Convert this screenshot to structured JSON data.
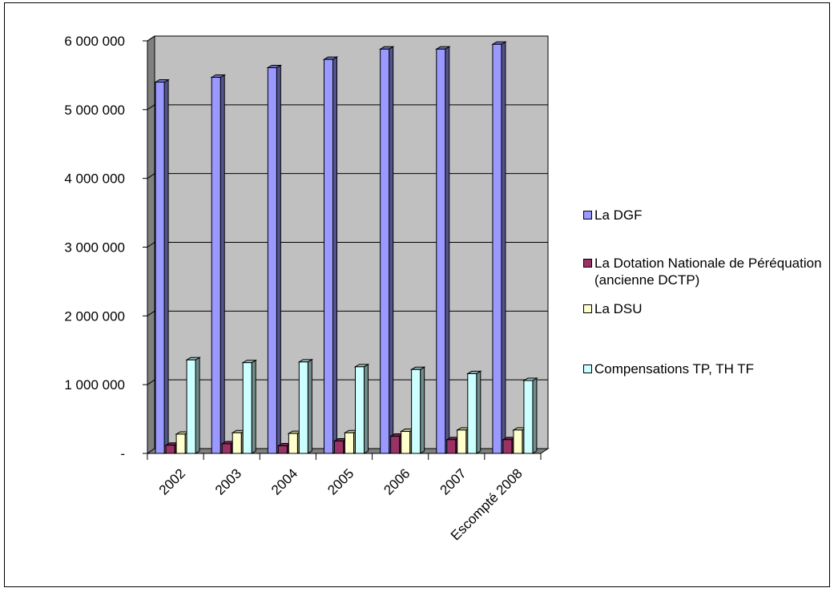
{
  "chart_data": {
    "type": "bar",
    "title": "",
    "xlabel": "",
    "ylabel": "",
    "categories": [
      "2002",
      "2003",
      "2004",
      "2005",
      "2006",
      "2007",
      "Escompté 2008"
    ],
    "ylim": [
      0,
      6000000
    ],
    "yticks": [
      {
        "value": 0,
        "label": "-"
      },
      {
        "value": 1000000,
        "label": "1 000 000"
      },
      {
        "value": 2000000,
        "label": "2 000 000"
      },
      {
        "value": 3000000,
        "label": "3 000 000"
      },
      {
        "value": 4000000,
        "label": "4 000 000"
      },
      {
        "value": 5000000,
        "label": "5 000 000"
      },
      {
        "value": 6000000,
        "label": "6 000 000"
      }
    ],
    "grid": true,
    "style": "3d-clustered-columns",
    "legend_position": "right",
    "series": [
      {
        "name": "La DGF",
        "color": "#9999ff",
        "values": [
          5400000,
          5470000,
          5610000,
          5730000,
          5880000,
          5880000,
          5950000
        ]
      },
      {
        "name": "La Dotation Nationale de Péréquation (ancienne DCTP)",
        "color": "#993366",
        "values": [
          120000,
          140000,
          110000,
          180000,
          250000,
          200000,
          200000
        ]
      },
      {
        "name": "La DSU",
        "color": "#ffffcc",
        "values": [
          280000,
          300000,
          290000,
          300000,
          320000,
          340000,
          340000
        ]
      },
      {
        "name": "Compensations TP, TH TF",
        "color": "#ccffff",
        "values": [
          1360000,
          1320000,
          1330000,
          1260000,
          1220000,
          1160000,
          1060000
        ]
      }
    ]
  }
}
